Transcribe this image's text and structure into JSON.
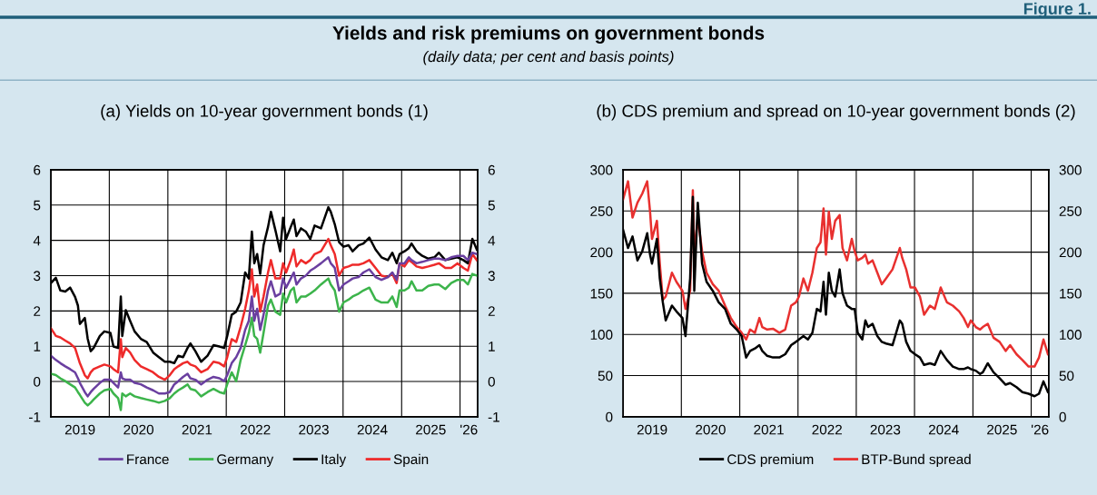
{
  "chart_data": [
    {
      "type": "line",
      "title": "(a) Yields on 10-year government bonds (1)",
      "annotations": [
        "Figure 1.",
        "Yields and risk premiums on government bonds",
        "(daily data; per cent and basis points)"
      ],
      "x": [
        "2019-01-01",
        "2019-02-01",
        "2019-03-01",
        "2019-04-01",
        "2019-05-01",
        "2019-06-01",
        "2019-06-19",
        "2019-07-01",
        "2019-08-01",
        "2019-08-19",
        "2019-09-07",
        "2019-09-25",
        "2019-11-03",
        "2019-12-01",
        "2020-01-08",
        "2020-01-27",
        "2020-02-25",
        "2020-03-13",
        "2020-03-22",
        "2020-04-13",
        "2020-05-10",
        "2020-06-07",
        "2020-07-16",
        "2020-08-22",
        "2020-10-01",
        "2020-11-06",
        "2020-12-13",
        "2021-01-13",
        "2021-02-10",
        "2021-03-07",
        "2021-04-06",
        "2021-05-04",
        "2021-05-22",
        "2021-06-22",
        "2021-07-28",
        "2021-09-06",
        "2021-10-13",
        "2021-11-19",
        "2021-12-19",
        "2022-01-07",
        "2022-02-04",
        "2022-03-04",
        "2022-04-01",
        "2022-04-29",
        "2022-05-22",
        "2022-06-10",
        "2022-06-25",
        "2022-07-13",
        "2022-08-01",
        "2022-08-22",
        "2022-09-19",
        "2022-10-07",
        "2022-11-04",
        "2022-12-04",
        "2022-12-22",
        "2023-01-10",
        "2023-02-08",
        "2023-02-27",
        "2023-03-16",
        "2023-04-13",
        "2023-05-13",
        "2023-06-10",
        "2023-07-07",
        "2023-08-16",
        "2023-10-01",
        "2023-10-16",
        "2023-11-10",
        "2023-12-07",
        "2024-01-04",
        "2024-02-04",
        "2024-03-01",
        "2024-04-07",
        "2024-05-07",
        "2024-06-13",
        "2024-07-22",
        "2024-08-28",
        "2024-10-07",
        "2024-11-04",
        "2024-12-01",
        "2024-12-19",
        "2025-01-19",
        "2025-02-15",
        "2025-03-04",
        "2025-04-04",
        "2025-05-10",
        "2025-06-17",
        "2025-07-25",
        "2025-08-22",
        "2025-10-01",
        "2025-11-07",
        "2025-12-16",
        "2026-01-22",
        "2026-02-19",
        "2026-03-19",
        "2026-04-16"
      ],
      "series": [
        {
          "name": "France",
          "color": "#6a3fa0",
          "values": [
            0.73,
            0.61,
            0.52,
            0.43,
            0.35,
            0.26,
            0.09,
            -0.04,
            -0.3,
            -0.42,
            -0.3,
            -0.21,
            -0.04,
            0.05,
            0.05,
            -0.04,
            -0.17,
            0.26,
            0.09,
            0.05,
            0.05,
            -0.04,
            -0.08,
            -0.17,
            -0.25,
            -0.34,
            -0.34,
            -0.3,
            -0.08,
            0.01,
            0.13,
            0.22,
            0.09,
            0.05,
            -0.08,
            0.05,
            0.13,
            0.09,
            0.01,
            0.18,
            0.52,
            0.69,
            0.95,
            1.46,
            1.72,
            2.41,
            1.72,
            2.06,
            1.46,
            1.89,
            2.58,
            2.84,
            2.41,
            2.49,
            2.92,
            2.66,
            2.92,
            3.09,
            2.75,
            2.92,
            3.0,
            3.14,
            3.22,
            3.35,
            3.52,
            3.35,
            3.22,
            2.58,
            2.75,
            2.84,
            2.92,
            2.96,
            3.09,
            3.18,
            2.96,
            2.88,
            2.96,
            3.09,
            2.88,
            3.35,
            3.35,
            3.52,
            3.44,
            3.35,
            3.39,
            3.44,
            3.48,
            3.48,
            3.44,
            3.52,
            3.56,
            3.56,
            3.44,
            3.65,
            3.61
          ]
        },
        {
          "name": "Germany",
          "color": "#3cb44b",
          "values": [
            0.22,
            0.18,
            0.09,
            0.01,
            -0.08,
            -0.17,
            -0.3,
            -0.38,
            -0.6,
            -0.68,
            -0.6,
            -0.51,
            -0.34,
            -0.25,
            -0.21,
            -0.34,
            -0.47,
            -0.81,
            -0.34,
            -0.42,
            -0.34,
            -0.42,
            -0.47,
            -0.51,
            -0.55,
            -0.6,
            -0.55,
            -0.47,
            -0.34,
            -0.25,
            -0.17,
            -0.08,
            -0.21,
            -0.25,
            -0.42,
            -0.3,
            -0.21,
            -0.3,
            -0.34,
            -0.08,
            0.26,
            0.01,
            0.61,
            1.03,
            1.38,
            1.81,
            1.29,
            1.21,
            0.82,
            1.38,
            2.15,
            2.32,
            1.98,
            1.89,
            2.49,
            2.24,
            2.58,
            2.66,
            2.24,
            2.41,
            2.41,
            2.49,
            2.58,
            2.75,
            2.92,
            2.75,
            2.58,
            1.98,
            2.24,
            2.32,
            2.41,
            2.49,
            2.58,
            2.66,
            2.32,
            2.24,
            2.24,
            2.41,
            2.11,
            2.58,
            2.58,
            2.66,
            2.84,
            2.58,
            2.58,
            2.71,
            2.75,
            2.75,
            2.62,
            2.79,
            2.88,
            2.88,
            2.75,
            3.05,
            3.0
          ]
        },
        {
          "name": "Italy",
          "color": "#000000",
          "values": [
            2.79,
            2.94,
            2.58,
            2.55,
            2.66,
            2.4,
            2.15,
            1.63,
            1.8,
            1.21,
            0.86,
            0.95,
            1.29,
            1.42,
            1.38,
            0.99,
            0.95,
            2.41,
            1.29,
            2.02,
            1.72,
            1.42,
            1.21,
            1.12,
            0.82,
            0.69,
            0.56,
            0.56,
            0.52,
            0.73,
            0.69,
            0.95,
            1.08,
            0.86,
            0.56,
            0.73,
            1.03,
            0.99,
            0.95,
            1.29,
            1.89,
            1.98,
            2.24,
            3.09,
            2.92,
            4.25,
            3.35,
            3.61,
            3.05,
            3.86,
            4.38,
            4.81,
            4.29,
            3.69,
            4.64,
            4.04,
            4.38,
            4.59,
            4.12,
            4.34,
            4.25,
            4.04,
            4.42,
            4.34,
            4.94,
            4.81,
            4.46,
            3.95,
            3.82,
            3.86,
            3.69,
            3.86,
            3.91,
            4.08,
            3.74,
            3.52,
            3.44,
            3.65,
            3.35,
            3.61,
            3.69,
            3.78,
            3.91,
            3.69,
            3.56,
            3.48,
            3.52,
            3.65,
            3.44,
            3.48,
            3.52,
            3.44,
            3.35,
            4.04,
            3.74
          ]
        },
        {
          "name": "Spain",
          "color": "#ee2a2a",
          "values": [
            1.51,
            1.29,
            1.25,
            1.16,
            1.08,
            0.95,
            0.69,
            0.52,
            0.18,
            0.09,
            0.26,
            0.35,
            0.43,
            0.48,
            0.43,
            0.35,
            0.26,
            1.2,
            0.69,
            0.95,
            0.82,
            0.61,
            0.43,
            0.35,
            0.26,
            0.13,
            0.05,
            0.18,
            0.35,
            0.43,
            0.52,
            0.56,
            0.48,
            0.43,
            0.26,
            0.35,
            0.56,
            0.52,
            0.43,
            0.69,
            1.2,
            1.12,
            1.55,
            2.06,
            2.58,
            3.18,
            2.41,
            2.75,
            1.98,
            2.41,
            3.09,
            3.44,
            2.92,
            2.92,
            3.35,
            3.09,
            3.44,
            3.74,
            3.26,
            3.44,
            3.35,
            3.44,
            3.61,
            3.69,
            4.04,
            3.86,
            3.61,
            3.0,
            3.22,
            3.26,
            3.31,
            3.31,
            3.35,
            3.44,
            3.22,
            3.0,
            2.96,
            3.05,
            2.79,
            3.35,
            3.26,
            3.44,
            3.39,
            3.26,
            3.22,
            3.26,
            3.31,
            3.35,
            3.22,
            3.22,
            3.35,
            3.22,
            3.14,
            3.61,
            3.44
          ]
        }
      ],
      "xlim": [
        "2019-01-01",
        "2026-04-21"
      ],
      "xticks": [
        {
          "value": "2019-07-02",
          "label": "2019"
        },
        {
          "value": "2020-01-01",
          "label": null
        },
        {
          "value": "2020-07-02",
          "label": "2020"
        },
        {
          "value": "2021-01-01",
          "label": null
        },
        {
          "value": "2021-07-02",
          "label": "2021"
        },
        {
          "value": "2022-01-01",
          "label": null
        },
        {
          "value": "2022-07-02",
          "label": "2022"
        },
        {
          "value": "2023-01-01",
          "label": null
        },
        {
          "value": "2023-07-02",
          "label": "2023"
        },
        {
          "value": "2024-01-01",
          "label": null
        },
        {
          "value": "2024-07-02",
          "label": "2024"
        },
        {
          "value": "2025-01-01",
          "label": null
        },
        {
          "value": "2025-07-02",
          "label": "2025"
        },
        {
          "value": "2026-01-01",
          "label": null
        },
        {
          "value": "2026-02-25",
          "label": "'26"
        }
      ],
      "ylim": [
        -1,
        6
      ],
      "yticks": [
        -1,
        0,
        1,
        2,
        3,
        4,
        5,
        6
      ],
      "y2lim": [
        -1,
        6
      ],
      "y2ticks": [
        -1,
        0,
        1,
        2,
        3,
        4,
        5,
        6
      ],
      "grid": true,
      "legend": "bottom",
      "line_style": "solid",
      "marker": "none"
    },
    {
      "type": "line",
      "title": "(b) CDS premium and spread on 10-year government bonds (2)",
      "x": [
        "2019-01-01",
        "2019-02-01",
        "2019-03-01",
        "2019-04-01",
        "2019-05-01",
        "2019-06-01",
        "2019-06-19",
        "2019-07-01",
        "2019-08-01",
        "2019-08-19",
        "2019-09-07",
        "2019-09-25",
        "2019-11-03",
        "2019-12-01",
        "2020-01-08",
        "2020-01-27",
        "2020-02-25",
        "2020-03-13",
        "2020-03-22",
        "2020-04-13",
        "2020-05-10",
        "2020-06-07",
        "2020-07-16",
        "2020-08-22",
        "2020-10-01",
        "2020-11-06",
        "2020-12-13",
        "2021-01-13",
        "2021-02-10",
        "2021-03-07",
        "2021-04-06",
        "2021-05-04",
        "2021-05-22",
        "2021-06-22",
        "2021-07-28",
        "2021-09-06",
        "2021-10-13",
        "2021-11-19",
        "2021-12-19",
        "2022-01-07",
        "2022-02-04",
        "2022-03-04",
        "2022-04-01",
        "2022-04-29",
        "2022-05-22",
        "2022-06-10",
        "2022-06-25",
        "2022-07-13",
        "2022-08-01",
        "2022-08-22",
        "2022-09-19",
        "2022-10-07",
        "2022-11-04",
        "2022-12-04",
        "2022-12-22",
        "2023-01-10",
        "2023-02-08",
        "2023-02-27",
        "2023-03-16",
        "2023-04-13",
        "2023-05-13",
        "2023-06-10",
        "2023-07-07",
        "2023-08-16",
        "2023-10-01",
        "2023-10-16",
        "2023-11-10",
        "2023-12-07",
        "2024-01-04",
        "2024-02-04",
        "2024-03-01",
        "2024-04-07",
        "2024-05-07",
        "2024-06-13",
        "2024-07-22",
        "2024-08-28",
        "2024-10-07",
        "2024-11-04",
        "2024-12-01",
        "2024-12-19",
        "2025-01-19",
        "2025-02-15",
        "2025-03-04",
        "2025-04-04",
        "2025-05-10",
        "2025-06-17",
        "2025-07-25",
        "2025-08-22",
        "2025-10-01",
        "2025-11-07",
        "2025-12-16",
        "2026-01-22",
        "2026-02-19",
        "2026-03-19",
        "2026-04-16"
      ],
      "series": [
        {
          "name": "CDS premium",
          "color": "#000000",
          "values": [
            227,
            205,
            219,
            190,
            201,
            223,
            197,
            186,
            216,
            168,
            139,
            117,
            135,
            128,
            120,
            98,
            168,
            267,
            153,
            260,
            186,
            164,
            153,
            139,
            131,
            113,
            106,
            98,
            72,
            80,
            83,
            87,
            80,
            74,
            72,
            72,
            76,
            87,
            91,
            94,
            98,
            94,
            102,
            131,
            128,
            164,
            124,
            175,
            153,
            146,
            179,
            150,
            135,
            131,
            131,
            102,
            94,
            117,
            109,
            113,
            98,
            91,
            89,
            87,
            117,
            113,
            91,
            80,
            76,
            72,
            63,
            65,
            63,
            80,
            69,
            61,
            58,
            58,
            60,
            58,
            56,
            52,
            54,
            65,
            54,
            47,
            39,
            41,
            36,
            30,
            28,
            25,
            28,
            43,
            30
          ]
        },
        {
          "name": "BTP-Bund spread",
          "color": "#e8302f",
          "values": [
            264,
            286,
            242,
            260,
            271,
            286,
            249,
            216,
            238,
            186,
            142,
            146,
            175,
            164,
            153,
            131,
            153,
            275,
            197,
            242,
            201,
            175,
            161,
            153,
            135,
            120,
            109,
            102,
            94,
            106,
            102,
            120,
            109,
            106,
            107,
            102,
            106,
            135,
            139,
            146,
            168,
            153,
            175,
            205,
            212,
            253,
            197,
            249,
            216,
            238,
            245,
            205,
            190,
            216,
            201,
            190,
            193,
            197,
            186,
            190,
            175,
            161,
            168,
            179,
            205,
            193,
            179,
            157,
            157,
            146,
            124,
            135,
            131,
            157,
            139,
            135,
            128,
            120,
            109,
            117,
            109,
            106,
            109,
            113,
            96,
            91,
            80,
            87,
            76,
            69,
            61,
            61,
            72,
            94,
            76
          ]
        }
      ],
      "xlim": [
        "2019-01-01",
        "2026-04-21"
      ],
      "xticks": [
        {
          "value": "2019-07-02",
          "label": "2019"
        },
        {
          "value": "2020-01-01",
          "label": null
        },
        {
          "value": "2020-07-02",
          "label": "2020"
        },
        {
          "value": "2021-01-01",
          "label": null
        },
        {
          "value": "2021-07-02",
          "label": "2021"
        },
        {
          "value": "2022-01-01",
          "label": null
        },
        {
          "value": "2022-07-02",
          "label": "2022"
        },
        {
          "value": "2023-01-01",
          "label": null
        },
        {
          "value": "2023-07-02",
          "label": "2023"
        },
        {
          "value": "2024-01-01",
          "label": null
        },
        {
          "value": "2024-07-02",
          "label": "2024"
        },
        {
          "value": "2025-01-01",
          "label": null
        },
        {
          "value": "2025-07-02",
          "label": "2025"
        },
        {
          "value": "2026-01-01",
          "label": null
        },
        {
          "value": "2026-02-25",
          "label": "'26"
        }
      ],
      "ylim": [
        0,
        300
      ],
      "yticks": [
        0,
        50,
        100,
        150,
        200,
        250,
        300
      ],
      "y2lim": [
        0,
        300
      ],
      "y2ticks": [
        0,
        50,
        100,
        150,
        200,
        250,
        300
      ],
      "grid": true,
      "legend": "bottom",
      "line_style": "solid",
      "marker": "none"
    }
  ]
}
